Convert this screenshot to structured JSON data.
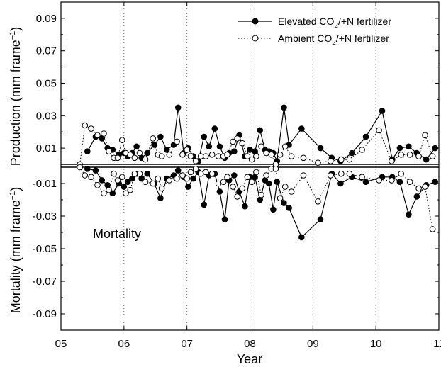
{
  "chart_data": {
    "type": "line",
    "xlabel": "Year",
    "ylabel_top": "Production (mm frame",
    "ylabel_bottom": "Mortality (mm frame",
    "ylabel_superscript": "−1",
    "ylabel_close": ")",
    "annotation": "Mortality",
    "xlim": [
      5,
      11
    ],
    "x_ticks": [
      5,
      6,
      7,
      8,
      9,
      10,
      11
    ],
    "x_tick_labels": [
      "05",
      "06",
      "07",
      "08",
      "09",
      "10",
      "11"
    ],
    "y_top_range": [
      0,
      0.1
    ],
    "y_bottom_range": [
      0,
      -0.1
    ],
    "y_top_ticks": [
      0.01,
      0.03,
      0.05,
      0.07,
      0.09
    ],
    "y_top_tick_labels": [
      "0.01",
      "0.03",
      "0.05",
      "0.07",
      "0.09"
    ],
    "y_bottom_ticks": [
      -0.01,
      -0.03,
      -0.05,
      -0.07,
      -0.09
    ],
    "y_bottom_tick_labels": [
      "-0.01",
      "-0.03",
      "-0.05",
      "-0.07",
      "-0.09"
    ],
    "year_gridlines": [
      6,
      7,
      8,
      9,
      10
    ],
    "legend": {
      "position": "top-right",
      "entries": [
        {
          "prefix": "Elevated CO",
          "sub": "2",
          "suffix": "/+N fertilizer"
        },
        {
          "prefix": "Ambient CO",
          "sub": "2",
          "suffix": "/+N fertilizer"
        }
      ]
    },
    "series": [
      {
        "name": "Elevated CO2/+N fertilizer",
        "marker": "filled-circle",
        "line": "solid",
        "color": "#000000",
        "production": [
          [
            5.42,
            0.008
          ],
          [
            5.55,
            0.017
          ],
          [
            5.65,
            0.016
          ],
          [
            5.74,
            0.01
          ],
          [
            5.82,
            0.009
          ],
          [
            5.92,
            0.006
          ],
          [
            6.0,
            0.007
          ],
          [
            6.06,
            0.005
          ],
          [
            6.13,
            0.007
          ],
          [
            6.2,
            0.011
          ],
          [
            6.28,
            0.004
          ],
          [
            6.37,
            0.007
          ],
          [
            6.48,
            0.012
          ],
          [
            6.58,
            0.017
          ],
          [
            6.68,
            0.009
          ],
          [
            6.79,
            0.012
          ],
          [
            6.86,
            0.035
          ],
          [
            6.95,
            0.007
          ],
          [
            7.02,
            0.01
          ],
          [
            7.1,
            0.005
          ],
          [
            7.18,
            0.002
          ],
          [
            7.27,
            0.017
          ],
          [
            7.35,
            0.011
          ],
          [
            7.44,
            0.022
          ],
          [
            7.52,
            0.011
          ],
          [
            7.6,
            0.004
          ],
          [
            7.67,
            0.007
          ],
          [
            7.75,
            0.008
          ],
          [
            7.83,
            0.018
          ],
          [
            7.92,
            0.005
          ],
          [
            8.0,
            0.009
          ],
          [
            8.08,
            0.008
          ],
          [
            8.16,
            0.021
          ],
          [
            8.24,
            0.009
          ],
          [
            8.3,
            0.008
          ],
          [
            8.37,
            0.007
          ],
          [
            8.43,
            0.002
          ],
          [
            8.54,
            0.035
          ],
          [
            8.62,
            0.012
          ],
          [
            8.82,
            0.022
          ],
          [
            9.12,
            0.01
          ],
          [
            9.3,
            0.004
          ],
          [
            9.44,
            0.002
          ],
          [
            9.62,
            0.007
          ],
          [
            9.84,
            0.017
          ],
          [
            10.1,
            0.033
          ],
          [
            10.26,
            0.003
          ],
          [
            10.38,
            0.01
          ],
          [
            10.52,
            0.011
          ],
          [
            10.65,
            0.007
          ],
          [
            10.8,
            0.003
          ],
          [
            10.94,
            0.01
          ]
        ],
        "mortality": [
          [
            5.42,
            -0.001
          ],
          [
            5.55,
            -0.002
          ],
          [
            5.65,
            -0.008
          ],
          [
            5.74,
            -0.011
          ],
          [
            5.82,
            -0.016
          ],
          [
            5.92,
            -0.01
          ],
          [
            6.0,
            -0.012
          ],
          [
            6.06,
            -0.009
          ],
          [
            6.13,
            -0.007
          ],
          [
            6.2,
            -0.004
          ],
          [
            6.28,
            -0.007
          ],
          [
            6.37,
            -0.004
          ],
          [
            6.48,
            -0.01
          ],
          [
            6.58,
            -0.019
          ],
          [
            6.68,
            -0.007
          ],
          [
            6.79,
            -0.005
          ],
          [
            6.86,
            -0.002
          ],
          [
            6.95,
            -0.006
          ],
          [
            7.02,
            -0.012
          ],
          [
            7.1,
            -0.007
          ],
          [
            7.18,
            -0.003
          ],
          [
            7.27,
            -0.023
          ],
          [
            7.35,
            -0.005
          ],
          [
            7.44,
            -0.004
          ],
          [
            7.52,
            -0.015
          ],
          [
            7.6,
            -0.032
          ],
          [
            7.67,
            -0.008
          ],
          [
            7.75,
            -0.005
          ],
          [
            7.83,
            -0.015
          ],
          [
            7.92,
            -0.024
          ],
          [
            8.0,
            -0.006
          ],
          [
            8.08,
            -0.006
          ],
          [
            8.16,
            -0.02
          ],
          [
            8.24,
            -0.008
          ],
          [
            8.3,
            -0.01
          ],
          [
            8.37,
            -0.026
          ],
          [
            8.43,
            -0.009
          ],
          [
            8.54,
            -0.022
          ],
          [
            8.62,
            -0.025
          ],
          [
            8.82,
            -0.043
          ],
          [
            9.12,
            -0.032
          ],
          [
            9.3,
            -0.004
          ],
          [
            9.44,
            -0.01
          ],
          [
            9.62,
            -0.006
          ],
          [
            9.84,
            -0.009
          ],
          [
            10.1,
            -0.006
          ],
          [
            10.26,
            -0.006
          ],
          [
            10.38,
            -0.009
          ],
          [
            10.52,
            -0.029
          ],
          [
            10.65,
            -0.018
          ],
          [
            10.8,
            -0.011
          ],
          [
            10.94,
            -0.009
          ]
        ]
      },
      {
        "name": "Ambient CO2/+N fertilizer",
        "marker": "open-circle",
        "line": "dotted",
        "color": "#000000",
        "production": [
          [
            5.3,
            0.0
          ],
          [
            5.38,
            0.024
          ],
          [
            5.48,
            0.022
          ],
          [
            5.58,
            0.018
          ],
          [
            5.68,
            0.019
          ],
          [
            5.76,
            0.008
          ],
          [
            5.84,
            0.004
          ],
          [
            5.9,
            0.004
          ],
          [
            5.97,
            0.015
          ],
          [
            6.03,
            0.007
          ],
          [
            6.1,
            0.006
          ],
          [
            6.17,
            0.004
          ],
          [
            6.25,
            0.007
          ],
          [
            6.34,
            0.003
          ],
          [
            6.46,
            0.016
          ],
          [
            6.54,
            0.006
          ],
          [
            6.6,
            0.005
          ],
          [
            6.72,
            0.006
          ],
          [
            6.84,
            0.014
          ],
          [
            6.93,
            0.006
          ],
          [
            7.0,
            0.009
          ],
          [
            7.06,
            0.005
          ],
          [
            7.14,
            0.002
          ],
          [
            7.22,
            0.005
          ],
          [
            7.3,
            0.005
          ],
          [
            7.4,
            0.006
          ],
          [
            7.5,
            0.005
          ],
          [
            7.58,
            0.005
          ],
          [
            7.64,
            0.006
          ],
          [
            7.73,
            0.014
          ],
          [
            7.8,
            0.016
          ],
          [
            7.88,
            0.013
          ],
          [
            7.96,
            0.005
          ],
          [
            8.03,
            0.003
          ],
          [
            8.1,
            0.005
          ],
          [
            8.18,
            0.011
          ],
          [
            8.26,
            0.007
          ],
          [
            8.34,
            0.006
          ],
          [
            8.41,
            0.0
          ],
          [
            8.48,
            0.006
          ],
          [
            8.56,
            0.011
          ],
          [
            8.66,
            0.005
          ],
          [
            8.85,
            0.004
          ],
          [
            9.08,
            0.001
          ],
          [
            9.28,
            0.002
          ],
          [
            9.45,
            0.003
          ],
          [
            9.58,
            0.003
          ],
          [
            9.78,
            0.009
          ],
          [
            10.05,
            0.021
          ],
          [
            10.25,
            0.002
          ],
          [
            10.4,
            0.006
          ],
          [
            10.54,
            0.006
          ],
          [
            10.68,
            0.005
          ],
          [
            10.78,
            0.018
          ],
          [
            10.9,
            0.005
          ]
        ],
        "mortality": [
          [
            5.3,
            0.0
          ],
          [
            5.38,
            -0.005
          ],
          [
            5.48,
            -0.006
          ],
          [
            5.58,
            -0.011
          ],
          [
            5.68,
            -0.016
          ],
          [
            5.76,
            -0.014
          ],
          [
            5.84,
            -0.004
          ],
          [
            5.9,
            -0.008
          ],
          [
            5.97,
            -0.006
          ],
          [
            6.03,
            -0.016
          ],
          [
            6.1,
            -0.014
          ],
          [
            6.17,
            -0.004
          ],
          [
            6.25,
            -0.004
          ],
          [
            6.34,
            -0.009
          ],
          [
            6.46,
            -0.01
          ],
          [
            6.54,
            -0.007
          ],
          [
            6.6,
            -0.013
          ],
          [
            6.72,
            -0.008
          ],
          [
            6.84,
            -0.007
          ],
          [
            6.93,
            -0.005
          ],
          [
            7.0,
            -0.007
          ],
          [
            7.06,
            -0.003
          ],
          [
            7.14,
            -0.001
          ],
          [
            7.22,
            -0.004
          ],
          [
            7.3,
            -0.003
          ],
          [
            7.4,
            -0.004
          ],
          [
            7.5,
            -0.01
          ],
          [
            7.58,
            -0.009
          ],
          [
            7.64,
            -0.006
          ],
          [
            7.73,
            -0.012
          ],
          [
            7.8,
            -0.018
          ],
          [
            7.88,
            -0.013
          ],
          [
            7.96,
            -0.006
          ],
          [
            8.03,
            -0.009
          ],
          [
            8.1,
            -0.003
          ],
          [
            8.18,
            -0.017
          ],
          [
            8.26,
            -0.005
          ],
          [
            8.34,
            -0.001
          ],
          [
            8.41,
            -0.001
          ],
          [
            8.48,
            -0.019
          ],
          [
            8.56,
            -0.012
          ],
          [
            8.66,
            -0.015
          ],
          [
            8.85,
            -0.005
          ],
          [
            9.08,
            -0.021
          ],
          [
            9.28,
            -0.005
          ],
          [
            9.45,
            -0.004
          ],
          [
            9.58,
            -0.004
          ],
          [
            9.78,
            -0.006
          ],
          [
            10.05,
            -0.008
          ],
          [
            10.25,
            -0.008
          ],
          [
            10.4,
            -0.004
          ],
          [
            10.54,
            -0.009
          ],
          [
            10.68,
            -0.013
          ],
          [
            10.78,
            -0.012
          ],
          [
            10.9,
            -0.038
          ]
        ]
      }
    ]
  }
}
